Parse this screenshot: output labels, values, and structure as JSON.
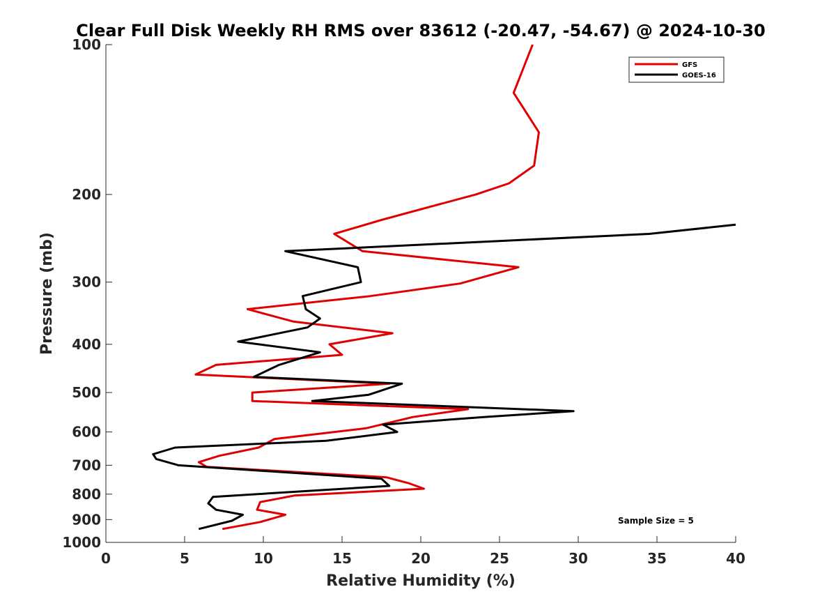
{
  "chart_data": {
    "type": "line",
    "title": "Clear Full Disk Weekly RH RMS over 83612 (-20.47, -54.67) @ 2024-10-30",
    "xlabel": "Relative Humidity (%)",
    "ylabel": "Pressure (mb)",
    "xlim": [
      0,
      40
    ],
    "ylim": [
      1000,
      100
    ],
    "y_scale": "log",
    "x_ticks": [
      0,
      5,
      10,
      15,
      20,
      25,
      30,
      35,
      40
    ],
    "y_ticks": [
      100,
      200,
      300,
      400,
      500,
      600,
      700,
      800,
      900,
      1000
    ],
    "grid": false,
    "legend_position": "top-right",
    "annotation": "Sample Size = 5",
    "series": [
      {
        "name": "GFS",
        "color": "#e00000",
        "x": [
          27.1,
          25.9,
          27.5,
          27.2,
          25.6,
          23.5,
          17.5,
          14.5,
          16.3,
          26.2,
          22.5,
          16.8,
          9.0,
          11.9,
          18.2,
          14.2,
          15.0,
          7.0,
          5.7,
          18.0,
          9.3,
          9.3,
          23.0,
          19.5,
          16.5,
          10.7,
          9.7,
          7.2,
          5.9,
          6.4,
          17.8,
          19.2,
          20.2,
          12.0,
          9.8,
          9.6,
          11.4,
          9.8,
          7.4
        ],
        "y": [
          100,
          125,
          150,
          175,
          190,
          200,
          225,
          240,
          260,
          280,
          302,
          320,
          340,
          360,
          380,
          400,
          420,
          440,
          460,
          480,
          500,
          520,
          540,
          560,
          590,
          620,
          645,
          670,
          690,
          705,
          740,
          760,
          780,
          805,
          830,
          860,
          880,
          910,
          940
        ]
      },
      {
        "name": "GOES-16",
        "color": "#000000",
        "x": [
          40.0,
          34.5,
          11.4,
          16.0,
          16.2,
          12.5,
          12.7,
          13.6,
          12.8,
          8.4,
          13.6,
          11.0,
          9.4,
          18.8,
          16.7,
          13.1,
          29.7,
          24.0,
          17.6,
          18.5,
          14.0,
          4.4,
          3.0,
          3.2,
          4.6,
          17.5,
          18.0,
          6.8,
          6.5,
          7.0,
          8.7,
          8.0,
          5.9
        ],
        "y": [
          230,
          240,
          260,
          280,
          300,
          320,
          340,
          355,
          370,
          395,
          415,
          440,
          465,
          480,
          505,
          520,
          545,
          560,
          580,
          600,
          625,
          645,
          665,
          680,
          700,
          745,
          770,
          810,
          835,
          860,
          880,
          905,
          940
        ]
      }
    ]
  }
}
